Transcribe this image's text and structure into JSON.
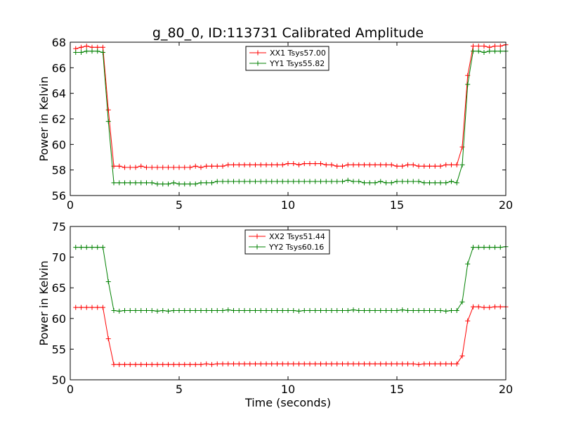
{
  "chart_data": [
    {
      "type": "line",
      "title": "g_80_0, ID:113731 Calibrated Amplitude",
      "xlabel": "",
      "ylabel": "Power in Kelvin",
      "xlim": [
        0,
        20
      ],
      "ylim": [
        56,
        68
      ],
      "xticks": [
        0,
        5,
        10,
        15,
        20
      ],
      "yticks": [
        56,
        58,
        60,
        62,
        64,
        66,
        68
      ],
      "grid": false,
      "legend_position": "upper-center",
      "x": [
        0.25,
        0.5,
        0.75,
        1.0,
        1.25,
        1.5,
        1.75,
        2.0,
        2.25,
        2.5,
        2.75,
        3.0,
        3.25,
        3.5,
        3.75,
        4.0,
        4.25,
        4.5,
        4.75,
        5.0,
        5.25,
        5.5,
        5.75,
        6.0,
        6.25,
        6.5,
        6.75,
        7.0,
        7.25,
        7.5,
        7.75,
        8.0,
        8.25,
        8.5,
        8.75,
        9.0,
        9.25,
        9.5,
        9.75,
        10.0,
        10.25,
        10.5,
        10.75,
        11.0,
        11.25,
        11.5,
        11.75,
        12.0,
        12.25,
        12.5,
        12.75,
        13.0,
        13.25,
        13.5,
        13.75,
        14.0,
        14.25,
        14.5,
        14.75,
        15.0,
        15.25,
        15.5,
        15.75,
        16.0,
        16.25,
        16.5,
        16.75,
        17.0,
        17.25,
        17.5,
        17.75,
        18.0,
        18.25,
        18.5,
        18.75,
        19.0,
        19.25,
        19.5,
        19.75,
        20.0
      ],
      "series": [
        {
          "name": "XX1 Tsys57.00",
          "color": "#ff0000",
          "values": [
            67.5,
            67.6,
            67.7,
            67.6,
            67.6,
            67.6,
            62.7,
            58.3,
            58.3,
            58.2,
            58.2,
            58.2,
            58.3,
            58.2,
            58.2,
            58.2,
            58.2,
            58.2,
            58.2,
            58.2,
            58.2,
            58.2,
            58.3,
            58.2,
            58.3,
            58.3,
            58.3,
            58.3,
            58.4,
            58.4,
            58.4,
            58.4,
            58.4,
            58.4,
            58.4,
            58.4,
            58.4,
            58.4,
            58.4,
            58.5,
            58.5,
            58.4,
            58.5,
            58.5,
            58.5,
            58.5,
            58.4,
            58.4,
            58.3,
            58.3,
            58.4,
            58.4,
            58.4,
            58.4,
            58.4,
            58.4,
            58.4,
            58.4,
            58.4,
            58.3,
            58.3,
            58.4,
            58.4,
            58.3,
            58.3,
            58.3,
            58.3,
            58.3,
            58.4,
            58.4,
            58.4,
            59.8,
            65.4,
            67.7,
            67.7,
            67.7,
            67.6,
            67.7,
            67.7,
            67.8
          ]
        },
        {
          "name": "YY1 Tsys55.82",
          "color": "#008000",
          "values": [
            67.2,
            67.2,
            67.3,
            67.3,
            67.3,
            67.2,
            61.8,
            57.0,
            57.0,
            57.0,
            57.0,
            57.0,
            57.0,
            57.0,
            57.0,
            56.9,
            56.9,
            56.9,
            57.0,
            56.9,
            56.9,
            56.9,
            56.9,
            57.0,
            57.0,
            57.0,
            57.1,
            57.1,
            57.1,
            57.1,
            57.1,
            57.1,
            57.1,
            57.1,
            57.1,
            57.1,
            57.1,
            57.1,
            57.1,
            57.1,
            57.1,
            57.1,
            57.1,
            57.1,
            57.1,
            57.1,
            57.1,
            57.1,
            57.1,
            57.1,
            57.2,
            57.1,
            57.1,
            57.0,
            57.0,
            57.0,
            57.1,
            57.0,
            57.0,
            57.1,
            57.1,
            57.1,
            57.1,
            57.1,
            57.0,
            57.0,
            57.0,
            57.0,
            57.0,
            57.1,
            57.0,
            58.4,
            64.7,
            67.3,
            67.3,
            67.2,
            67.3,
            67.3,
            67.3,
            67.3
          ]
        }
      ]
    },
    {
      "type": "line",
      "title": "",
      "xlabel": "Time (seconds)",
      "ylabel": "Power in Kelvin",
      "xlim": [
        0,
        20
      ],
      "ylim": [
        50,
        75
      ],
      "xticks": [
        0,
        5,
        10,
        15,
        20
      ],
      "yticks": [
        50,
        55,
        60,
        65,
        70,
        75
      ],
      "grid": false,
      "legend_position": "upper-center",
      "x": [
        0.25,
        0.5,
        0.75,
        1.0,
        1.25,
        1.5,
        1.75,
        2.0,
        2.25,
        2.5,
        2.75,
        3.0,
        3.25,
        3.5,
        3.75,
        4.0,
        4.25,
        4.5,
        4.75,
        5.0,
        5.25,
        5.5,
        5.75,
        6.0,
        6.25,
        6.5,
        6.75,
        7.0,
        7.25,
        7.5,
        7.75,
        8.0,
        8.25,
        8.5,
        8.75,
        9.0,
        9.25,
        9.5,
        9.75,
        10.0,
        10.25,
        10.5,
        10.75,
        11.0,
        11.25,
        11.5,
        11.75,
        12.0,
        12.25,
        12.5,
        12.75,
        13.0,
        13.25,
        13.5,
        13.75,
        14.0,
        14.25,
        14.5,
        14.75,
        15.0,
        15.25,
        15.5,
        15.75,
        16.0,
        16.25,
        16.5,
        16.75,
        17.0,
        17.25,
        17.5,
        17.75,
        18.0,
        18.25,
        18.5,
        18.75,
        19.0,
        19.25,
        19.5,
        19.75,
        20.0
      ],
      "series": [
        {
          "name": "XX2 Tsys51.44",
          "color": "#ff0000",
          "values": [
            61.8,
            61.8,
            61.8,
            61.8,
            61.8,
            61.8,
            56.7,
            52.5,
            52.5,
            52.5,
            52.5,
            52.5,
            52.5,
            52.5,
            52.5,
            52.5,
            52.5,
            52.5,
            52.5,
            52.5,
            52.5,
            52.5,
            52.5,
            52.5,
            52.6,
            52.5,
            52.6,
            52.6,
            52.6,
            52.6,
            52.6,
            52.6,
            52.6,
            52.6,
            52.6,
            52.6,
            52.6,
            52.6,
            52.6,
            52.6,
            52.6,
            52.6,
            52.6,
            52.6,
            52.6,
            52.6,
            52.6,
            52.6,
            52.6,
            52.6,
            52.6,
            52.6,
            52.6,
            52.6,
            52.6,
            52.6,
            52.6,
            52.6,
            52.6,
            52.6,
            52.6,
            52.6,
            52.6,
            52.5,
            52.6,
            52.6,
            52.6,
            52.6,
            52.6,
            52.6,
            52.6,
            53.9,
            59.6,
            61.9,
            61.9,
            61.8,
            61.8,
            61.9,
            61.9,
            61.9
          ]
        },
        {
          "name": "YY2 Tsys60.16",
          "color": "#008000",
          "values": [
            71.6,
            71.6,
            71.6,
            71.6,
            71.6,
            71.6,
            66.0,
            61.3,
            61.2,
            61.3,
            61.3,
            61.3,
            61.3,
            61.3,
            61.3,
            61.2,
            61.3,
            61.2,
            61.3,
            61.3,
            61.3,
            61.3,
            61.3,
            61.3,
            61.3,
            61.3,
            61.3,
            61.3,
            61.4,
            61.3,
            61.3,
            61.3,
            61.3,
            61.3,
            61.3,
            61.3,
            61.3,
            61.3,
            61.3,
            61.3,
            61.3,
            61.2,
            61.3,
            61.3,
            61.3,
            61.3,
            61.3,
            61.3,
            61.3,
            61.3,
            61.3,
            61.4,
            61.3,
            61.3,
            61.3,
            61.3,
            61.3,
            61.3,
            61.3,
            61.3,
            61.4,
            61.3,
            61.3,
            61.3,
            61.3,
            61.3,
            61.3,
            61.3,
            61.2,
            61.3,
            61.3,
            62.7,
            68.9,
            71.6,
            71.6,
            71.6,
            71.6,
            71.6,
            71.6,
            71.7
          ]
        }
      ]
    }
  ]
}
